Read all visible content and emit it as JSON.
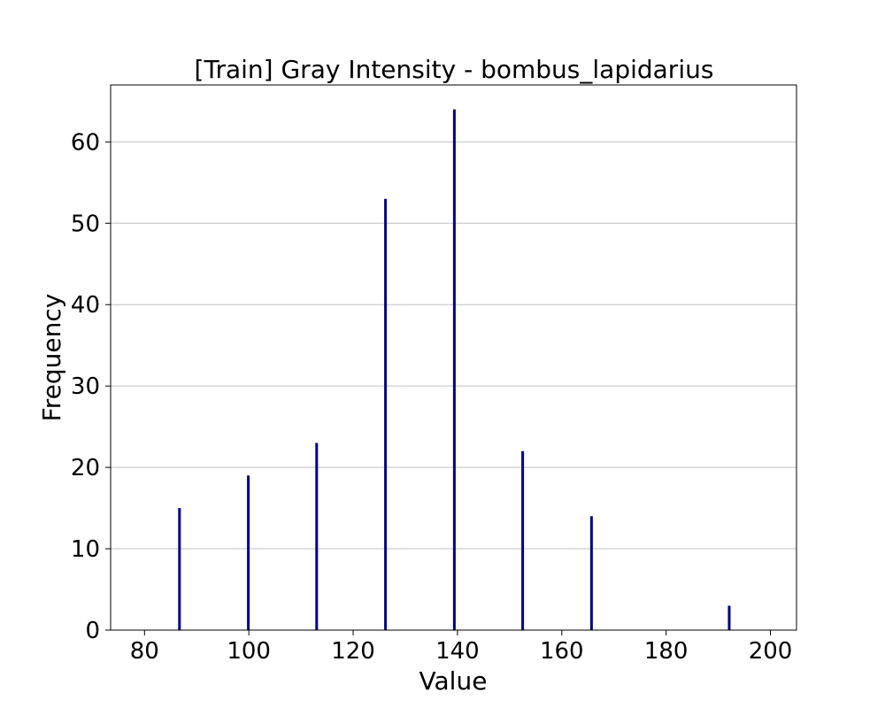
{
  "chart_data": {
    "type": "bar",
    "title": "[Train] Gray Intensity - bombus_lapidarius",
    "xlabel": "Value",
    "ylabel": "Frequency",
    "xlim": [
      73.5,
      205
    ],
    "ylim": [
      0,
      67
    ],
    "xticks": [
      80,
      100,
      120,
      140,
      160,
      180,
      200
    ],
    "yticks": [
      0,
      10,
      20,
      30,
      40,
      50,
      60
    ],
    "grid": "y",
    "bar_color": "#00008b",
    "bins": [
      {
        "x": 86.7,
        "value": 15
      },
      {
        "x": 99.9,
        "value": 19
      },
      {
        "x": 113.0,
        "value": 23
      },
      {
        "x": 126.2,
        "value": 53
      },
      {
        "x": 139.4,
        "value": 64
      },
      {
        "x": 152.5,
        "value": 22
      },
      {
        "x": 165.7,
        "value": 14
      },
      {
        "x": 192.1,
        "value": 3
      }
    ]
  }
}
